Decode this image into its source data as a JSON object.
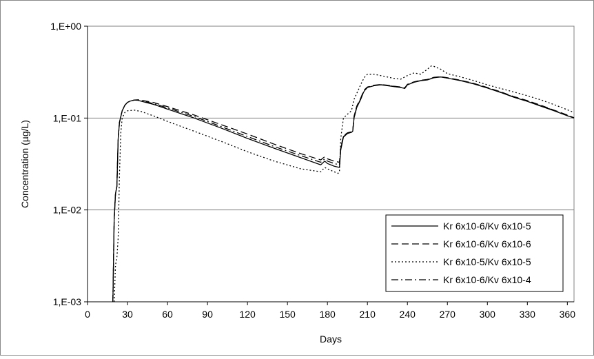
{
  "chart_data": {
    "type": "line",
    "xlabel": "Days",
    "ylabel": "Concentration (µg/L)",
    "xlim": [
      0,
      365
    ],
    "ylim": [
      0.001,
      1
    ],
    "y_scale": "log",
    "x_ticks": [
      0,
      30,
      60,
      90,
      120,
      150,
      180,
      210,
      240,
      270,
      300,
      330,
      360
    ],
    "y_ticks": [
      {
        "value": 1,
        "label": "1,E+00"
      },
      {
        "value": 0.1,
        "label": "1,E-01"
      },
      {
        "value": 0.01,
        "label": "1,E-02"
      },
      {
        "value": 0.001,
        "label": "1,E-03"
      }
    ],
    "grid": "horizontal",
    "legend_position": "bottom-right",
    "series": [
      {
        "name": "Kr 6x10-6/Kv 6x10-5",
        "dash": "solid",
        "x": [
          19,
          20,
          21,
          22,
          23,
          24,
          26,
          28,
          30,
          32,
          35,
          38,
          40,
          50,
          60,
          80,
          100,
          120,
          140,
          160,
          175,
          177,
          178,
          180,
          185,
          189,
          190,
          192,
          195,
          198,
          199,
          200,
          202,
          205,
          207,
          208,
          210,
          215,
          220,
          225,
          230,
          235,
          238,
          240,
          245,
          250,
          255,
          260,
          265,
          270,
          280,
          290,
          300,
          310,
          320,
          330,
          340,
          350,
          360,
          365
        ],
        "y": [
          0.001,
          0.008,
          0.015,
          0.018,
          0.06,
          0.09,
          0.12,
          0.138,
          0.148,
          0.153,
          0.157,
          0.156,
          0.153,
          0.14,
          0.125,
          0.1,
          0.078,
          0.06,
          0.047,
          0.037,
          0.031,
          0.033,
          0.034,
          0.032,
          0.03,
          0.029,
          0.045,
          0.062,
          0.068,
          0.07,
          0.072,
          0.1,
          0.13,
          0.16,
          0.19,
          0.2,
          0.215,
          0.225,
          0.23,
          0.225,
          0.22,
          0.215,
          0.21,
          0.23,
          0.245,
          0.255,
          0.26,
          0.275,
          0.28,
          0.272,
          0.255,
          0.235,
          0.212,
          0.19,
          0.168,
          0.152,
          0.135,
          0.12,
          0.106,
          0.1
        ]
      },
      {
        "name": "Kr 6x10-6/Kv 6x10-6",
        "dash": "longdash",
        "x": [
          19,
          20,
          21,
          22,
          23,
          24,
          26,
          28,
          30,
          32,
          35,
          38,
          40,
          50,
          60,
          80,
          100,
          120,
          140,
          160,
          175,
          177,
          178,
          180,
          185,
          189,
          190,
          192,
          195,
          198,
          199,
          200,
          202,
          205,
          207,
          208,
          210,
          215,
          220,
          225,
          230,
          235,
          238,
          240,
          245,
          250,
          255,
          260,
          265,
          270,
          280,
          290,
          300,
          310,
          320,
          330,
          340,
          350,
          360,
          365
        ],
        "y": [
          0.001,
          0.008,
          0.015,
          0.018,
          0.06,
          0.09,
          0.12,
          0.138,
          0.148,
          0.153,
          0.157,
          0.158,
          0.157,
          0.147,
          0.133,
          0.108,
          0.085,
          0.067,
          0.052,
          0.041,
          0.035,
          0.037,
          0.038,
          0.036,
          0.034,
          0.033,
          0.048,
          0.064,
          0.069,
          0.071,
          0.073,
          0.105,
          0.135,
          0.165,
          0.195,
          0.205,
          0.218,
          0.228,
          0.232,
          0.228,
          0.222,
          0.218,
          0.213,
          0.233,
          0.248,
          0.258,
          0.263,
          0.278,
          0.282,
          0.275,
          0.258,
          0.238,
          0.215,
          0.193,
          0.171,
          0.155,
          0.138,
          0.122,
          0.108,
          0.101
        ]
      },
      {
        "name": "Kr 6x10-5/Kv 6x10-5",
        "dash": "dotted",
        "x": [
          20,
          21,
          22,
          23,
          24,
          25,
          26,
          28,
          30,
          35,
          40,
          50,
          60,
          80,
          100,
          120,
          140,
          160,
          175,
          177,
          178,
          180,
          185,
          188,
          189,
          190,
          192,
          195,
          198,
          200,
          203,
          206,
          208,
          210,
          215,
          220,
          230,
          235,
          238,
          240,
          245,
          250,
          255,
          258,
          260,
          265,
          270,
          280,
          290,
          300,
          310,
          320,
          330,
          340,
          350,
          360,
          365
        ],
        "y": [
          0.001,
          0.0025,
          0.003,
          0.005,
          0.025,
          0.07,
          0.1,
          0.115,
          0.12,
          0.122,
          0.118,
          0.105,
          0.092,
          0.072,
          0.056,
          0.043,
          0.034,
          0.028,
          0.026,
          0.028,
          0.029,
          0.028,
          0.026,
          0.025,
          0.026,
          0.06,
          0.1,
          0.11,
          0.12,
          0.16,
          0.2,
          0.25,
          0.28,
          0.3,
          0.3,
          0.29,
          0.27,
          0.265,
          0.28,
          0.29,
          0.31,
          0.3,
          0.34,
          0.37,
          0.365,
          0.34,
          0.305,
          0.28,
          0.255,
          0.23,
          0.21,
          0.192,
          0.175,
          0.158,
          0.14,
          0.123,
          0.115
        ]
      },
      {
        "name": "Kr 6x10-6/Kv 6x10-4",
        "dash": "dashdot",
        "x": [
          19,
          20,
          21,
          22,
          23,
          24,
          26,
          28,
          30,
          32,
          35,
          38,
          40,
          50,
          60,
          80,
          100,
          120,
          140,
          160,
          175,
          177,
          178,
          180,
          185,
          189,
          190,
          192,
          195,
          198,
          199,
          200,
          202,
          205,
          207,
          208,
          210,
          215,
          220,
          225,
          230,
          235,
          238,
          240,
          245,
          250,
          255,
          260,
          265,
          270,
          280,
          290,
          300,
          310,
          320,
          330,
          340,
          350,
          360,
          365
        ],
        "y": [
          0.001,
          0.008,
          0.015,
          0.018,
          0.06,
          0.09,
          0.12,
          0.138,
          0.148,
          0.153,
          0.157,
          0.157,
          0.155,
          0.143,
          0.129,
          0.104,
          0.081,
          0.063,
          0.049,
          0.039,
          0.033,
          0.035,
          0.036,
          0.034,
          0.032,
          0.031,
          0.046,
          0.063,
          0.068,
          0.07,
          0.072,
          0.102,
          0.132,
          0.162,
          0.192,
          0.202,
          0.216,
          0.226,
          0.231,
          0.226,
          0.221,
          0.216,
          0.211,
          0.231,
          0.246,
          0.256,
          0.261,
          0.276,
          0.281,
          0.273,
          0.256,
          0.236,
          0.213,
          0.191,
          0.169,
          0.153,
          0.136,
          0.121,
          0.107,
          0.1
        ]
      }
    ]
  }
}
